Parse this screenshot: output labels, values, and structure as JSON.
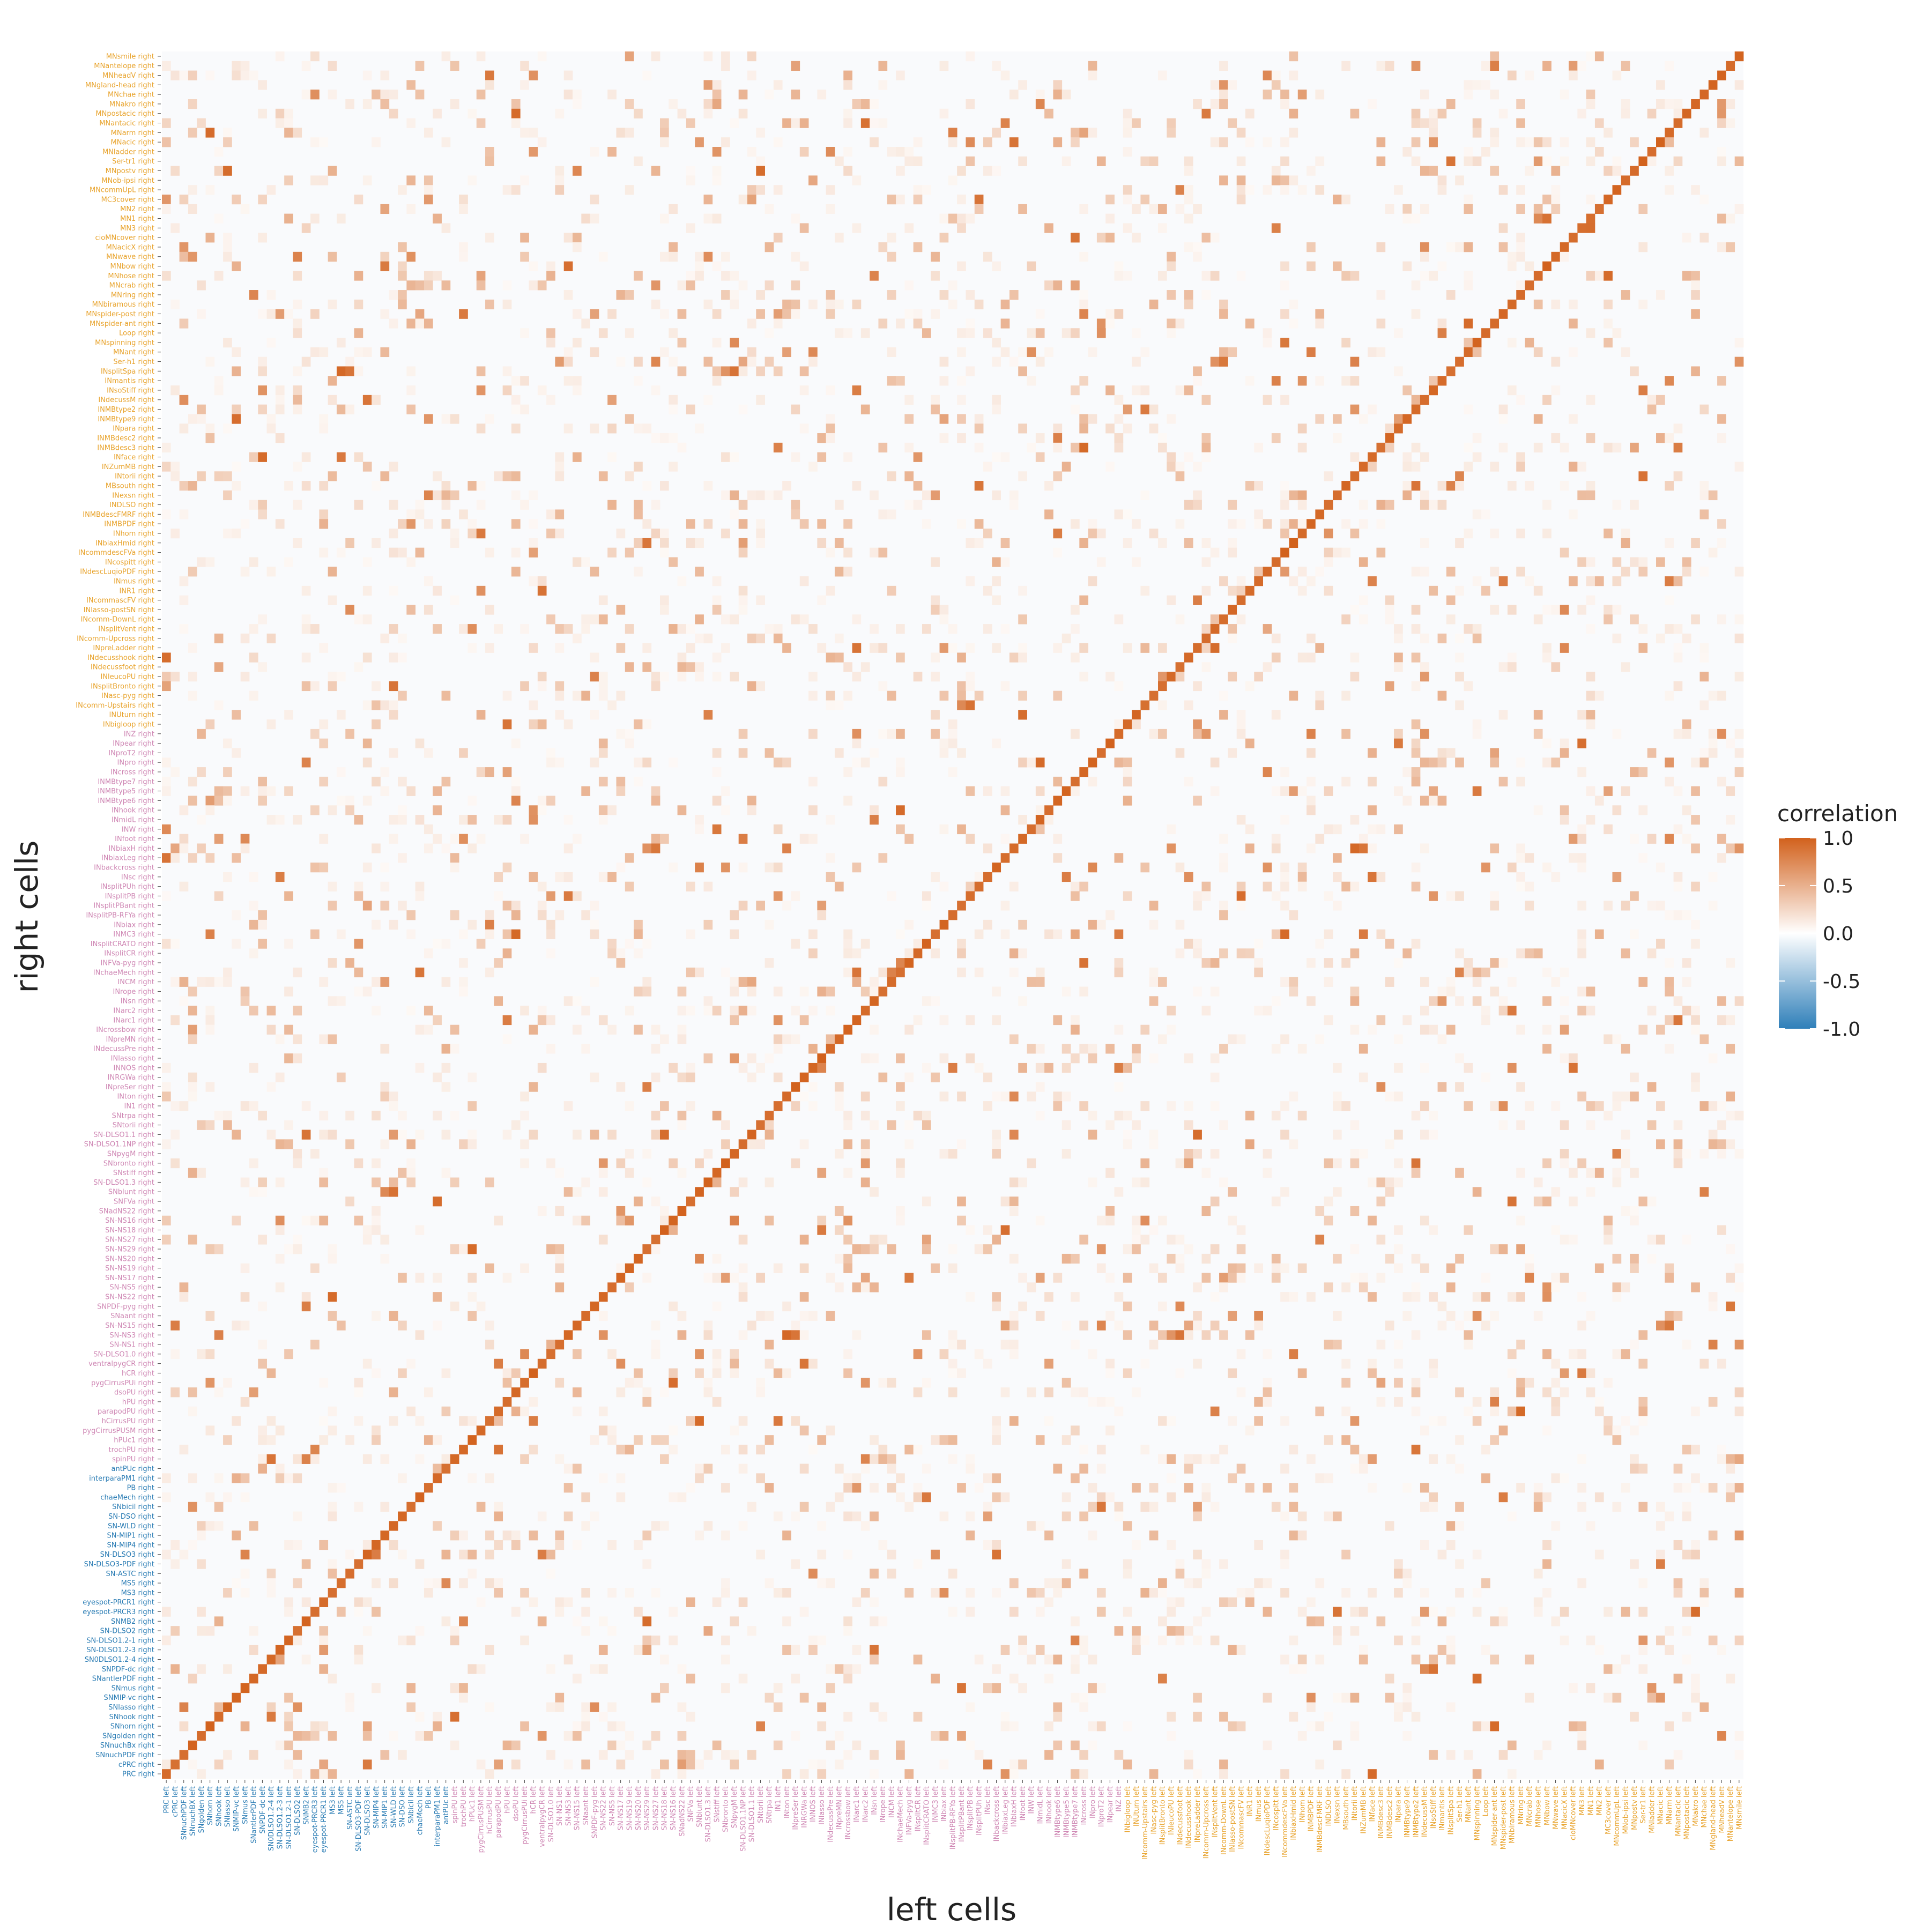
{
  "chart_data": {
    "type": "heatmap",
    "xlabel": "left cells",
    "ylabel": "right cells",
    "legend": {
      "title": "correlation",
      "ticks": [
        "1.0",
        "0.5",
        "0.0",
        "-0.5",
        "-1.0"
      ],
      "range": [
        -1,
        1
      ],
      "colors": {
        "low": "#2f7fb9",
        "mid": "#ffffff",
        "high": "#d2611c"
      },
      "placement": "right"
    },
    "group_colors": {
      "blue": "#2a7cb4",
      "pink": "#cf87b4",
      "orange": "#e8a32c"
    },
    "y_labels": {
      "orange": [
        "MNsmile right",
        "MNantelope right",
        "MNheadV right",
        "MNgland-head right",
        "MNchae right",
        "MNakro right",
        "MNpostacic right",
        "MNantacic right",
        "MNarm right",
        "MNacic right",
        "MNladder right",
        "Ser-tr1 right",
        "MNpostv right",
        "MNob-ipsi right",
        "MNcommUpL right",
        "MC3cover right",
        "MN2 right",
        "MN1 right",
        "MN3 right",
        "cioMNcover right",
        "MNacicX right",
        "MNwave right",
        "MNbow right",
        "MNhose right",
        "MNcrab right",
        "MNring right",
        "MNbiramous right",
        "MNspider-post right",
        "MNspider-ant right",
        "Loop right",
        "MNspinning right",
        "MNant right",
        "Ser-h1 right",
        "INsplitSpa right",
        "INmantis right",
        "INsoStiff right",
        "INdecussM right",
        "INMBtype2 right",
        "INMBtype9 right",
        "INpara right",
        "INMBdesc2 right",
        "INMBdesc3 right",
        "INface right",
        "INZumMB right",
        "INtorii right",
        "MBsouth right",
        "INexsn right",
        "INDLSO right",
        "INMBdescFMRF right",
        "INMBPDF right",
        "INhom right",
        "INbiaxHmid right",
        "INcommdescFVa right",
        "INcospitt right",
        "INdescLuqioPDF right",
        "INmus right",
        "INR1 right",
        "INcommascFV right",
        "INlasso-postSN right",
        "INcomm-DownL right",
        "INsplitVent right",
        "INcomm-Upcross right",
        "INpreLadder right",
        "INdecusshook right",
        "INdecussfoot right",
        "INleucoPU right",
        "INsplitBronto right",
        "INasc-pyg right",
        "INcomm-Upstairs right",
        "INUturn right",
        "INbigloop right"
      ],
      "pink": [
        "INZ right",
        "INpear right",
        "INproT2 right",
        "INpro right",
        "INcross right",
        "INMBtype7 right",
        "INMBtype5 right",
        "INMBtype6 right",
        "INhook right",
        "INmidL right",
        "INW right",
        "INfoot right",
        "INbiaxH right",
        "INbiaxLeg right",
        "INbackcross right",
        "INsc right",
        "INsplitPUh right",
        "INsplitPB right",
        "INsplitPBant right",
        "INsplitPB-RFYa right",
        "INbiax right",
        "INMC3 right",
        "INsplitCRATO right",
        "INsplitCR right",
        "INFVa-pyg right",
        "INchaeMech right",
        "INCM right",
        "INrope right",
        "INsn right",
        "INarc2 right",
        "INarc1 right",
        "INcrossbow right",
        "INpreMN right",
        "INdecussPre right",
        "INlasso right",
        "INNOS right",
        "INRGWa right",
        "INpreSer right",
        "INton right",
        "IN1 right",
        "SNtrpa right",
        "SNtorii right",
        "SN-DLSO1.1 right",
        "SN-DLSO1.1NP right",
        "SNpygM right",
        "SNbronto right",
        "SNstiff right",
        "SN-DLSO1.3 right",
        "SNblunt right",
        "SNFVa right",
        "SNadNS22 right",
        "SN-NS16 right",
        "SN-NS18 right",
        "SN-NS27 right",
        "SN-NS29 right",
        "SN-NS20 right",
        "SN-NS19 right",
        "SN-NS17 right",
        "SN-NS5 right",
        "SN-NS22 right",
        "SNPDF-pyg right",
        "SNaant right",
        "SN-NS15 right",
        "SN-NS3 right",
        "SN-NS1 right",
        "SN-DLSO1.0 right",
        "ventralpygCR right",
        "hCR right",
        "pygCirrusPUi right",
        "dsoPU right",
        "hPU right",
        "parapodPU right",
        "hCirrusPU right",
        "pygCirrusPUSM right",
        "hPUc1 right",
        "trochPU right",
        "spinPU right"
      ],
      "blue": [
        "antPUc right",
        "interparaPM1 right",
        "PB right",
        "chaeMech right",
        "SNbicil right",
        "SN-DSO right",
        "SN-WLD right",
        "SN-MIP1 right",
        "SN-MIP4 right",
        "SN-DLSO3 right",
        "SN-DLSO3-PDF right",
        "SN-ASTC right",
        "MS5 right",
        "MS3 right",
        "eyespot-PRCR1 right",
        "eyespot-PRCR3 right",
        "SNMB2 right",
        "SN-DLSO2 right",
        "SN-DLSO1.2-1 right",
        "SN-DLSO1.2-3 right",
        "SN0DLSO1.2-4 right",
        "SNPDF-dc right",
        "SNantlerPDF right",
        "SNmus right",
        "SNMIP-vc right",
        "SNlasso right",
        "SNhook right",
        "SNhorn right",
        "SNgolden right",
        "SNnuchBx right",
        "SNnuchPDF right",
        "cPRC right",
        "PRC right"
      ]
    },
    "x_labels": {
      "blue": [
        "PRC left",
        "cPRC left",
        "SNnuchPDF left",
        "SNnuchBX left",
        "SNgolden left",
        "SNhorn left",
        "SNhook left",
        "SNlasso left",
        "SNMIP-vc left",
        "SNmus left",
        "SNantlerPDF left",
        "SNPDF-dc left",
        "SN0DLSO1.2-4 left",
        "SN-DLSO1.2-3 left",
        "SN-DLSO1.2-1 left",
        "SN-DLSO2 left",
        "SNMB2 left",
        "eyespot-PRCR3 left",
        "eyespot-PRCR1 left",
        "MS3 left",
        "MS5 left",
        "SN-ASTC left",
        "SN-DLSO3-PDF left",
        "SN-DLSO3 left",
        "SN-MIP4 left",
        "SN-MIP1 left",
        "SN-WLD left",
        "SN-DSO left",
        "SNbicil left",
        "chaeMech left",
        "PB left",
        "interparaPM1 left",
        "antPUc left"
      ],
      "pink": [
        "spinPU left",
        "trochPU left",
        "hPUc1 left",
        "pygCirrusPUSM left",
        "hCirrusPU left",
        "parapodPU left",
        "hPU left",
        "dsoPU left",
        "pygCirrusPUi left",
        "hCR left",
        "ventralpygCR left",
        "SN-DLSO1.0 left",
        "SN-NS1 left",
        "SN-NS3 left",
        "SN-NS15 left",
        "SNaant left",
        "SNPDF-pyg left",
        "SN-NS22 left",
        "SN-NS5 left",
        "SN-NS17 left",
        "SN-NS19 left",
        "SN-NS20 left",
        "SN-NS29 left",
        "SN-NS27 left",
        "SN-NS18 left",
        "SN-NS16 left",
        "SNadNS22 left",
        "SNFVa left",
        "SNblunt left",
        "SN-DLSO1.3 left",
        "SNstiff left",
        "SNbronto left",
        "SNpygM left",
        "SN-DLSO1.1NP left",
        "SN-DLSO1.1 left",
        "SNtorii left",
        "SNtrpa left",
        "IN1 left",
        "INton left",
        "INpreSer left",
        "INRGWa left",
        "INNOS left",
        "INlasso left",
        "INdecussPre left",
        "INpreMN left",
        "INcrossbow left",
        "INarc1 left",
        "INarc2 left",
        "INsn left",
        "INrope left",
        "INCM left",
        "INchaeMech left",
        "INFVa-pyg left",
        "INsplitCR left",
        "INsplitCRATO left",
        "INMC3 left",
        "INbiax left",
        "INsplitPB-RFYa left",
        "INsplitPBant left",
        "INsplitPB left",
        "INsplitPUh left",
        "INsc left",
        "INbackcross left",
        "INbiaxLeg left",
        "INbiaxH left",
        "INfoot left",
        "INW left",
        "INmidL left",
        "INhook left",
        "INMBtype6 left",
        "INMBtype5 left",
        "INMBtype7 left",
        "INcross left",
        "INpro left",
        "INproT2 left",
        "INpear left",
        "INZ left"
      ],
      "orange": [
        "INbigloop left",
        "INUturn left",
        "INcomm-Upstairs left",
        "INasc-pyg left",
        "INsplitBronto left",
        "INleucoPU left",
        "INdecussfoot left",
        "INdecusshook left",
        "INpreLadder left",
        "INcomm-Upcross left",
        "INsplitVent left",
        "INcomm-DownL left",
        "INlasso-postSN left",
        "INcommascFV left",
        "INR1 left",
        "INmus left",
        "INdescLuqioPDF left",
        "INcospitt left",
        "INcommdescFVa left",
        "INbiaxHmid left",
        "INhom left",
        "INMBPDF left",
        "INMBdescFMRF left",
        "INDLSO left",
        "INexsn left",
        "MBsouth left",
        "INtorii left",
        "INZumMB left",
        "INface left",
        "INMBdesc3 left",
        "INMBdesc2 left",
        "INpara left",
        "INMBtype9 left",
        "INMBtype2 left",
        "INdecussM left",
        "INsoStiff left",
        "INmantis left",
        "INsplitSpa left",
        "Ser-h1 left",
        "MNant left",
        "MNspinning left",
        "Loop left",
        "MNspider-ant left",
        "MNspider-post left",
        "MNbiramous left",
        "MNring left",
        "MNcrab left",
        "MNhose left",
        "MNbow left",
        "MNwave left",
        "MNacicX left",
        "cioMNcover left",
        "MN3 left",
        "MN1 left",
        "MN2 left",
        "MC3cover left",
        "MNcommUpL left",
        "MNob-ipsi left",
        "MNpostv left",
        "Ser-tr1 left",
        "MNladder left",
        "MNacic left",
        "MNarm left",
        "MNantacic left",
        "MNpostacic left",
        "MNakro left",
        "MNchae left",
        "MNgland-head left",
        "MNheadV left",
        "MNantelope left",
        "MNsmile left"
      ]
    },
    "grid": false
  }
}
